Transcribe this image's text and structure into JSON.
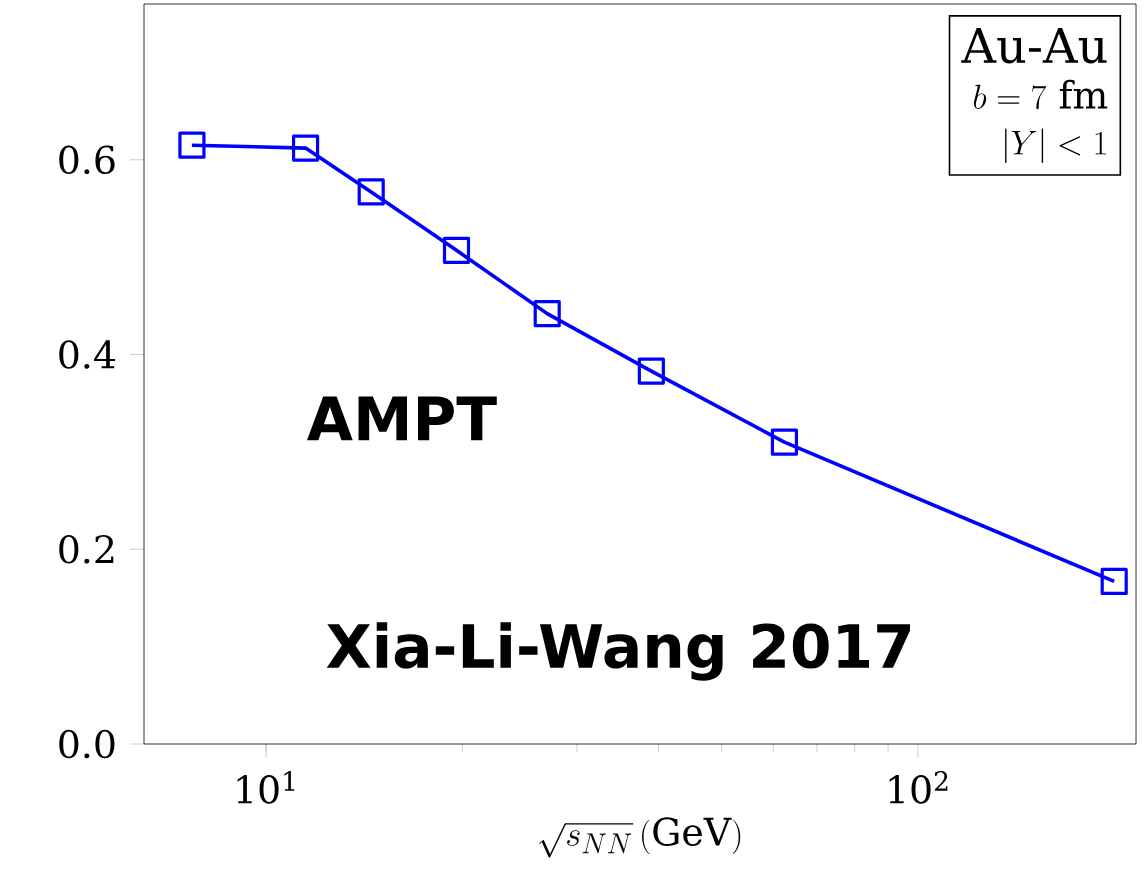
{
  "chart_data": {
    "type": "line",
    "xlabel": "\\sqrt{s_{NN}}\\,(\\mathrm{GeV})",
    "x": [
      7.7,
      11.5,
      14.5,
      19.6,
      27,
      39,
      62.4,
      200
    ],
    "series": [
      {
        "color": "#0000ff",
        "values": [
          0.615,
          0.612,
          0.567,
          0.507,
          0.442,
          0.383,
          0.31,
          0.167
        ]
      }
    ],
    "marker": "square",
    "line_style": "solid",
    "log": "x",
    "grid": false,
    "xlim": [
      6.5,
      216
    ],
    "ylim": [
      0,
      0.76
    ],
    "xticks": [
      {
        "value": 10,
        "label": "10$^{1}$"
      },
      {
        "value": 100,
        "label": "10$^{2}$"
      }
    ],
    "yticks": [
      {
        "value": 0,
        "label": "0.0"
      },
      {
        "value": 0.2,
        "label": "0.2"
      },
      {
        "value": 0.4,
        "label": "0.4"
      },
      {
        "value": 0.6,
        "label": "0.6"
      }
    ],
    "annotations": [
      "\\mathrm{Au\\text{-}Au}",
      "b=7\\ \\mathrm{fm}",
      "|Y|<1",
      "AMPT",
      "Xia-Li-Wang 2017"
    ]
  }
}
